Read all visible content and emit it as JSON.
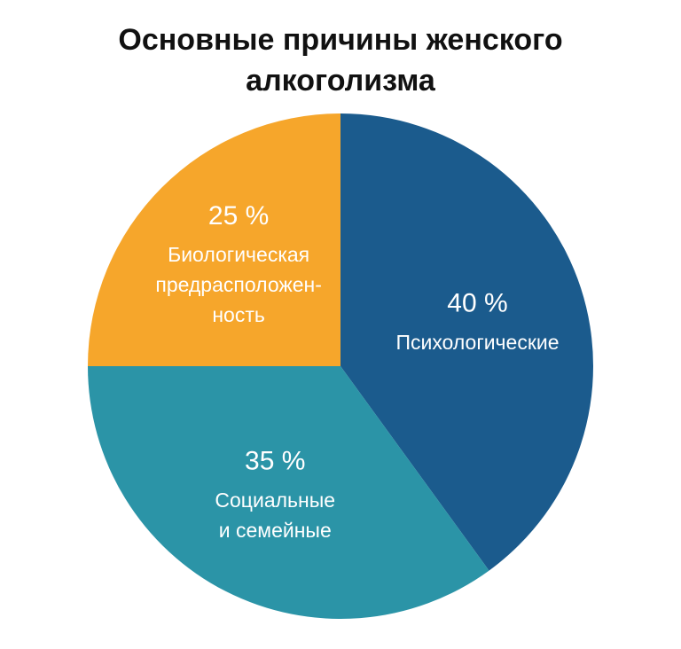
{
  "chart_data": {
    "type": "pie",
    "title": "Основные причины женского алкоголизма",
    "categories": [
      [
        "Психологические"
      ],
      [
        "Социальные",
        "и семейные"
      ],
      [
        "Биологическая",
        "предрасположен-",
        "ность"
      ]
    ],
    "values": [
      40,
      35,
      25
    ],
    "value_labels": [
      "40 %",
      "35 %",
      "25 %"
    ],
    "colors": [
      "#1b5b8d",
      "#2b94a7",
      "#f6a62b"
    ]
  }
}
